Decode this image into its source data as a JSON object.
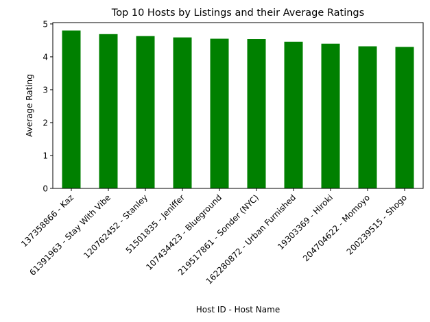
{
  "chart_data": {
    "type": "bar",
    "title": "Top 10 Hosts by Listings and their Average Ratings",
    "xlabel": "Host ID - Host Name",
    "ylabel": "Average Rating",
    "categories": [
      "137358866 - Kaz",
      "61391963 - Stay With Vibe",
      "120762452 - Stanley",
      "51501835 - Jeniffer",
      "107434423 - Blueground",
      "219517861 - Sonder (NYC)",
      "162280872 - Urban Furnished",
      "19303369 - Hiroki",
      "204704622 - Momoyo",
      "200239515 - Shogo"
    ],
    "values": [
      4.8,
      4.69,
      4.63,
      4.59,
      4.55,
      4.54,
      4.46,
      4.4,
      4.32,
      4.3
    ],
    "ylim": [
      0,
      5.04
    ],
    "yticks": [
      "0",
      "1",
      "2",
      "3",
      "4",
      "5"
    ],
    "bar_color": "#008000",
    "grid": false,
    "legend": "none"
  }
}
